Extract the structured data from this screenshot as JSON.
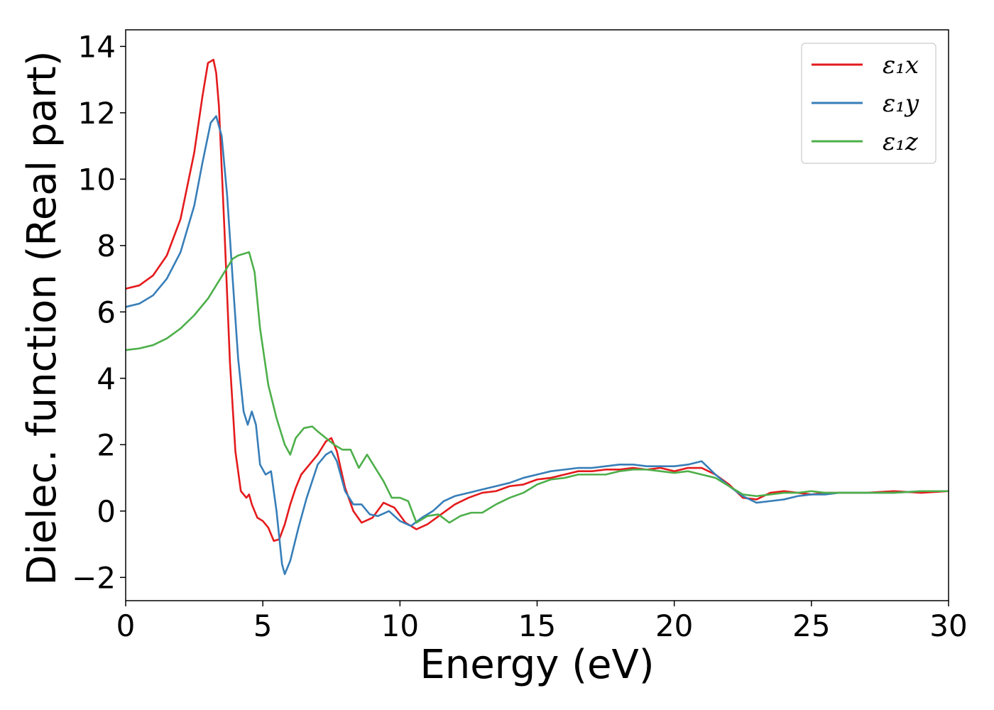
{
  "chart_data": {
    "type": "line",
    "title": "",
    "xlabel": "Energy (eV)",
    "ylabel": "Dielec. function (Real part)",
    "xlim": [
      0,
      30
    ],
    "ylim": [
      -2.7,
      14.5
    ],
    "xticks": [
      0,
      5,
      10,
      15,
      20,
      25,
      30
    ],
    "xtick_labels": [
      "0",
      "5",
      "10",
      "15",
      "20",
      "25",
      "30"
    ],
    "yticks": [
      -2,
      0,
      2,
      4,
      6,
      8,
      10,
      12,
      14
    ],
    "ytick_labels": [
      "−2",
      "0",
      "2",
      "4",
      "6",
      "8",
      "10",
      "12",
      "14"
    ],
    "grid": false,
    "legend_position": "top-right",
    "series": [
      {
        "name": "ε₁x",
        "color": "#e41a1c",
        "x": [
          0,
          0.5,
          1,
          1.5,
          2,
          2.5,
          2.8,
          3.0,
          3.2,
          3.3,
          3.4,
          3.6,
          3.8,
          4.0,
          4.2,
          4.4,
          4.5,
          4.6,
          4.8,
          5.0,
          5.2,
          5.4,
          5.6,
          5.8,
          6.0,
          6.2,
          6.4,
          6.7,
          7.0,
          7.3,
          7.5,
          7.7,
          8.0,
          8.3,
          8.6,
          9.0,
          9.4,
          9.8,
          10.2,
          10.6,
          11.0,
          11.5,
          12.0,
          12.5,
          13.0,
          13.5,
          14.0,
          14.5,
          15.0,
          15.5,
          16.0,
          16.5,
          17.0,
          17.5,
          18.0,
          18.5,
          19.0,
          19.5,
          20.0,
          20.5,
          21.0,
          21.5,
          22.0,
          22.5,
          23.0,
          23.5,
          24.0,
          24.5,
          25.0,
          25.5,
          26.0,
          27.0,
          28.0,
          29.0,
          30.0
        ],
        "y": [
          6.7,
          6.8,
          7.1,
          7.7,
          8.8,
          10.8,
          12.5,
          13.5,
          13.6,
          13.2,
          12.2,
          8.5,
          4.5,
          1.8,
          0.6,
          0.4,
          0.5,
          0.2,
          -0.2,
          -0.3,
          -0.5,
          -0.9,
          -0.85,
          -0.4,
          0.2,
          0.7,
          1.1,
          1.4,
          1.7,
          2.1,
          2.2,
          1.8,
          0.7,
          0.0,
          -0.35,
          -0.2,
          0.25,
          0.1,
          -0.35,
          -0.55,
          -0.4,
          -0.1,
          0.2,
          0.4,
          0.55,
          0.6,
          0.75,
          0.8,
          0.95,
          1.0,
          1.1,
          1.2,
          1.2,
          1.25,
          1.25,
          1.3,
          1.25,
          1.3,
          1.2,
          1.3,
          1.3,
          1.1,
          0.8,
          0.4,
          0.35,
          0.55,
          0.6,
          0.55,
          0.5,
          0.55,
          0.55,
          0.55,
          0.6,
          0.55,
          0.6
        ]
      },
      {
        "name": "ε₁y",
        "color": "#377eb8",
        "x": [
          0,
          0.5,
          1,
          1.5,
          2,
          2.5,
          2.8,
          3.1,
          3.3,
          3.5,
          3.7,
          3.9,
          4.1,
          4.3,
          4.45,
          4.6,
          4.75,
          4.9,
          5.1,
          5.3,
          5.5,
          5.7,
          5.8,
          6.0,
          6.3,
          6.6,
          7.0,
          7.3,
          7.5,
          7.7,
          8.0,
          8.3,
          8.6,
          8.9,
          9.2,
          9.6,
          10.0,
          10.4,
          10.8,
          11.2,
          11.6,
          12.0,
          12.5,
          13.0,
          13.5,
          14.0,
          14.5,
          15.0,
          15.5,
          16.0,
          16.5,
          17.0,
          17.5,
          18.0,
          18.5,
          19.0,
          19.5,
          20.0,
          20.5,
          21.0,
          21.5,
          22.0,
          22.5,
          23.0,
          23.5,
          24.0,
          24.5,
          25.0,
          25.5,
          26.0,
          27.0,
          28.0,
          29.0,
          30.0
        ],
        "y": [
          6.15,
          6.25,
          6.5,
          7.0,
          7.8,
          9.2,
          10.5,
          11.7,
          11.9,
          11.3,
          9.5,
          7.0,
          4.6,
          3.0,
          2.6,
          3.0,
          2.6,
          1.4,
          1.1,
          1.2,
          0.0,
          -1.6,
          -1.9,
          -1.5,
          -0.5,
          0.4,
          1.4,
          1.7,
          1.8,
          1.5,
          0.6,
          0.2,
          0.2,
          -0.1,
          -0.15,
          0.0,
          -0.3,
          -0.45,
          -0.2,
          0.0,
          0.3,
          0.45,
          0.55,
          0.65,
          0.75,
          0.85,
          1.0,
          1.1,
          1.2,
          1.25,
          1.3,
          1.3,
          1.35,
          1.4,
          1.4,
          1.35,
          1.35,
          1.35,
          1.4,
          1.5,
          1.1,
          0.75,
          0.45,
          0.25,
          0.3,
          0.35,
          0.45,
          0.5,
          0.5,
          0.55,
          0.55,
          0.55,
          0.6,
          0.6
        ]
      },
      {
        "name": "ε₁z",
        "color": "#4daf4a",
        "x": [
          0,
          0.5,
          1,
          1.5,
          2,
          2.5,
          3.0,
          3.3,
          3.6,
          3.9,
          4.1,
          4.3,
          4.5,
          4.7,
          4.9,
          5.2,
          5.5,
          5.8,
          6.0,
          6.2,
          6.5,
          6.8,
          7.0,
          7.3,
          7.6,
          7.9,
          8.2,
          8.5,
          8.8,
          9.1,
          9.4,
          9.7,
          10.0,
          10.3,
          10.6,
          11.0,
          11.4,
          11.8,
          12.2,
          12.6,
          13.0,
          13.5,
          14.0,
          14.5,
          15.0,
          15.5,
          16.0,
          16.5,
          17.0,
          17.5,
          18.0,
          18.5,
          19.0,
          19.5,
          20.0,
          20.5,
          21.0,
          21.5,
          22.0,
          22.5,
          23.0,
          23.5,
          24.0,
          24.5,
          25.0,
          25.5,
          26.0,
          27.0,
          28.0,
          29.0,
          30.0
        ],
        "y": [
          4.85,
          4.9,
          5.0,
          5.2,
          5.5,
          5.9,
          6.4,
          6.8,
          7.2,
          7.6,
          7.7,
          7.75,
          7.8,
          7.2,
          5.5,
          3.8,
          2.8,
          2.0,
          1.7,
          2.2,
          2.5,
          2.55,
          2.4,
          2.2,
          2.0,
          1.85,
          1.85,
          1.3,
          1.7,
          1.3,
          0.9,
          0.4,
          0.4,
          0.3,
          -0.35,
          -0.15,
          -0.1,
          -0.35,
          -0.15,
          -0.05,
          -0.05,
          0.2,
          0.4,
          0.55,
          0.8,
          0.95,
          1.0,
          1.1,
          1.1,
          1.1,
          1.2,
          1.25,
          1.25,
          1.2,
          1.15,
          1.2,
          1.1,
          1.0,
          0.75,
          0.5,
          0.45,
          0.5,
          0.55,
          0.55,
          0.6,
          0.55,
          0.55,
          0.55,
          0.55,
          0.6,
          0.6
        ]
      }
    ]
  }
}
